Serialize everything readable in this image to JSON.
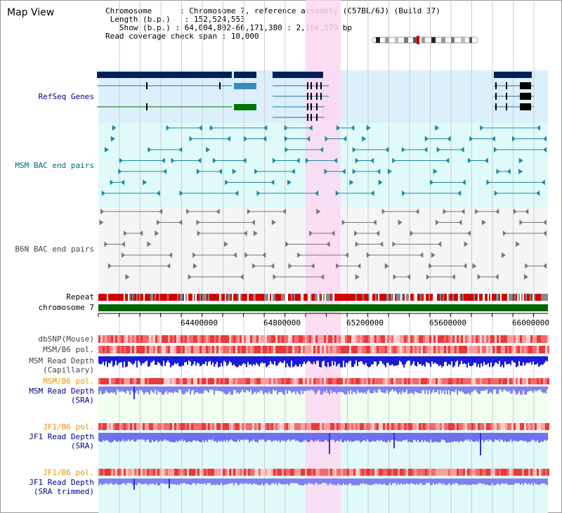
{
  "page": {
    "title": "Map View"
  },
  "info": {
    "chromosome_key": "Chromosome",
    "chromosome_val": "Chromosome 7, reference assembly (C57BL/6J) (Build 37)",
    "length_key": "Length (b.p.)",
    "length_val": "152,524,553",
    "show_key": "Show (b.p.)",
    "show_val": "64,004,802-66,171,380 : 2,166,579 bp",
    "coverage_key": "Read coverage check span",
    "coverage_val": "10,000"
  },
  "tracks": {
    "refseq": "RefSeq Genes",
    "msm_bac": "MSM BAC end pairs",
    "b6n_bac": "B6N BAC end pairs",
    "repeat": "Repeat",
    "chromosome": "chromosome 7",
    "dbsnp": "dbSNP(Mouse)",
    "msm_b6_pol": "MSM/B6 pol.",
    "msm_read_depth_cap_1": "MSM Read Depth",
    "msm_read_depth_cap_2": "(Capillary)",
    "msm_b6_pol_sra": "MSM/B6 pol.",
    "msm_read_depth_sra_1": "MSM Read Depth",
    "msm_read_depth_sra_2": "(SRA)",
    "jf1_b6_pol": "JF1/B6 pol.",
    "jf1_read_depth_1": "JF1 Read Depth",
    "jf1_read_depth_2": "(SRA)",
    "jf1_b6_pol_trim": "JF1/B6 pol.",
    "jf1_read_depth_trim_1": "JF1 Read Depth",
    "jf1_read_depth_trim_2": "(SRA trimmed)"
  },
  "axis": {
    "ticks": [
      "64400000",
      "64800000",
      "65200000",
      "65600000",
      "66000000"
    ]
  },
  "colors": {
    "refseq_bg": "#dbf0fa",
    "msm_bg": "#e0fafa",
    "b6n_bg": "#f5f5f7",
    "highlight": "#fbd8f2",
    "chromosome": "#006600",
    "repeat": "#d40000",
    "snp": "#f26b6b",
    "depth_dark": "#1a1ad8",
    "depth_light": "#8080f0",
    "label_blue": "#00008b",
    "label_teal": "#006b7d",
    "label_gray": "#444444",
    "label_orange": "#e69500"
  }
}
